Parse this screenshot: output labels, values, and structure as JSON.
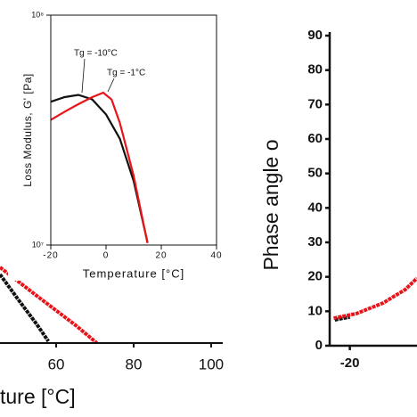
{
  "chart_data": [
    {
      "type": "line",
      "xlabel": "ture [°C]",
      "xlim": [
        45.5,
        103
      ],
      "xticks": [
        60,
        80,
        100
      ],
      "ylim": [
        0,
        100
      ],
      "series": [
        {
          "color": "#111111",
          "x": [
            45.5,
            50,
            55,
            58
          ],
          "values": [
            77,
            50,
            21,
            2
          ]
        },
        {
          "color": "#e8141a",
          "x": [
            45.5,
            55,
            65,
            70.5
          ],
          "values": [
            85,
            53,
            20,
            0
          ]
        }
      ]
    },
    {
      "type": "line",
      "ylabel": "Loss Modulus, G' [Pa]",
      "xlabel": "Temperature [°C]",
      "log_scale_y": true,
      "xlim": [
        -20,
        40
      ],
      "xticks": [
        -20,
        0,
        20,
        40
      ],
      "ylim": [
        10000000,
        100000000
      ],
      "yticks": [
        {
          "value": 10000000,
          "label": "10⁷"
        },
        {
          "value": 100000000,
          "label": "10⁸"
        }
      ],
      "annotations": [
        "Tg = -10°C",
        "Tg = -1°C"
      ],
      "series": [
        {
          "color": "#111111",
          "x": [
            -20,
            -15,
            -10,
            -5,
            0,
            5,
            10,
            15
          ],
          "values": [
            42000000,
            44000000,
            45000000,
            43000000,
            37000000,
            29000000,
            19000000,
            10300000
          ]
        },
        {
          "color": "#e8141a",
          "x": [
            -20,
            -15,
            -10,
            -5,
            -1,
            2,
            5,
            10,
            15
          ],
          "values": [
            35000000,
            38000000,
            41000000,
            44000000,
            46000000,
            43000000,
            34000000,
            20000000,
            10200000
          ]
        }
      ]
    },
    {
      "type": "line",
      "ylabel": "Phase angle o",
      "xlim": [
        -26,
        0
      ],
      "xticks": [
        -20
      ],
      "ylim": [
        0,
        90
      ],
      "yticks": [
        0,
        10,
        20,
        30,
        40,
        50,
        60,
        70,
        80,
        90
      ],
      "series": [
        {
          "color": "#111111",
          "x": [
            -24.5,
            -22,
            -20
          ],
          "values": [
            7.5,
            8,
            8.3
          ]
        },
        {
          "color": "#e8141a",
          "x": [
            -24.8,
            -18.1,
            -10.1,
            -3.5,
            0
          ],
          "values": [
            8,
            9.3,
            12.4,
            16.3,
            19.6
          ]
        }
      ]
    }
  ]
}
